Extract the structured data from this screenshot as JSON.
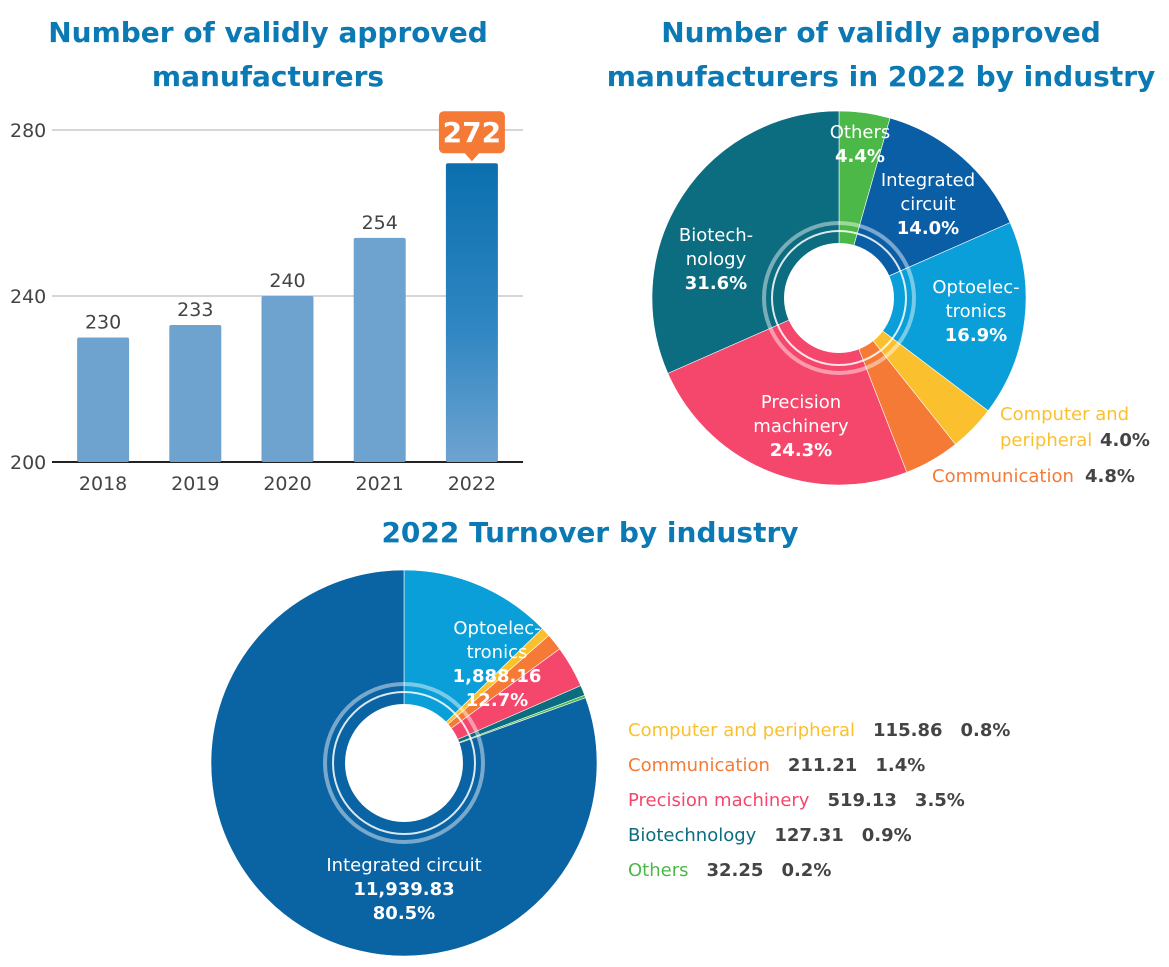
{
  "chart_data": [
    {
      "type": "bar",
      "title": "Number of validly approved manufacturers",
      "title_lines": [
        "Number of validly approved",
        "manufacturers"
      ],
      "categories": [
        "2018",
        "2019",
        "2020",
        "2021",
        "2022"
      ],
      "values": [
        230,
        233,
        240,
        254,
        272
      ],
      "value_labels": [
        "230",
        "233",
        "240",
        "254",
        "272"
      ],
      "yticks": [
        "200",
        "240",
        "280"
      ],
      "ylim": [
        200,
        280
      ],
      "grid": true,
      "highlight": {
        "category": "2022",
        "label": "272",
        "color": "#f47a36"
      },
      "bar_color": "#6ea3d0",
      "highlight_bar_color": "#0b79b3"
    },
    {
      "type": "pie",
      "title": "Number of validly approved manufacturers in 2022 by industry",
      "title_lines": [
        "Number of validly approved",
        "manufacturers in 2022 by industry"
      ],
      "slices": [
        {
          "name": "Others",
          "label_lines": [
            "Others"
          ],
          "value": 4.4,
          "pct": "4.4%",
          "color": "#4cb848"
        },
        {
          "name": "Integrated circuit",
          "label_lines": [
            "Integrated",
            "circuit"
          ],
          "value": 14.0,
          "pct": "14.0%",
          "color": "#0a5ea6"
        },
        {
          "name": "Optoelectronics",
          "label_lines": [
            "Optoelec-",
            "tronics"
          ],
          "value": 16.9,
          "pct": "16.9%",
          "color": "#0a9fd8"
        },
        {
          "name": "Computer and peripheral",
          "label_lines": [
            "Computer and",
            "peripheral"
          ],
          "value": 4.0,
          "pct": "4.0%",
          "color": "#fbc02d"
        },
        {
          "name": "Communication",
          "label_lines": [
            "Communication"
          ],
          "value": 4.8,
          "pct": "4.8%",
          "color": "#f47a36"
        },
        {
          "name": "Precision machinery",
          "label_lines": [
            "Precision",
            "machinery"
          ],
          "value": 24.3,
          "pct": "24.3%",
          "color": "#f4476b"
        },
        {
          "name": "Biotechnology",
          "label_lines": [
            "Biotech-",
            "nology"
          ],
          "value": 31.6,
          "pct": "31.6%",
          "color": "#0c6c80"
        }
      ]
    },
    {
      "type": "pie",
      "title": "2022 Turnover by industry",
      "slices": [
        {
          "name": "Optoelectronics",
          "label_lines": [
            "Optoelec-",
            "tronics"
          ],
          "value": 1888.16,
          "value_text": "1,888.16",
          "pct": "12.7%",
          "color": "#0a9fd8"
        },
        {
          "name": "Computer and peripheral",
          "value": 115.86,
          "value_text": "115.86",
          "pct": "0.8%",
          "color": "#fbc02d"
        },
        {
          "name": "Communication",
          "value": 211.21,
          "value_text": "211.21",
          "pct": "1.4%",
          "color": "#f47a36"
        },
        {
          "name": "Precision machinery",
          "value": 519.13,
          "value_text": "519.13",
          "pct": "3.5%",
          "color": "#f4476b"
        },
        {
          "name": "Biotechnology",
          "value": 127.31,
          "value_text": "127.31",
          "pct": "0.9%",
          "color": "#0c6c80"
        },
        {
          "name": "Others",
          "value": 32.25,
          "value_text": "32.25",
          "pct": "0.2%",
          "color": "#4cb848"
        },
        {
          "name": "Integrated circuit",
          "label_lines": [
            "Integrated circuit"
          ],
          "value": 11939.83,
          "value_text": "11,939.83",
          "pct": "80.5%",
          "color": "#0a63a3"
        }
      ],
      "legend": [
        {
          "name": "Computer and peripheral",
          "value_text": "115.86",
          "pct": "0.8%",
          "color": "#fbc02d"
        },
        {
          "name": "Communication",
          "value_text": "211.21",
          "pct": "1.4%",
          "color": "#f47a36"
        },
        {
          "name": "Precision machinery",
          "value_text": "519.13",
          "pct": "3.5%",
          "color": "#f4476b"
        },
        {
          "name": "Biotechnology",
          "value_text": "127.31",
          "pct": "0.9%",
          "color": "#0c6c80"
        },
        {
          "name": "Others",
          "value_text": "32.25",
          "pct": "0.2%",
          "color": "#4cb848"
        }
      ],
      "legend_placement": "right"
    }
  ]
}
